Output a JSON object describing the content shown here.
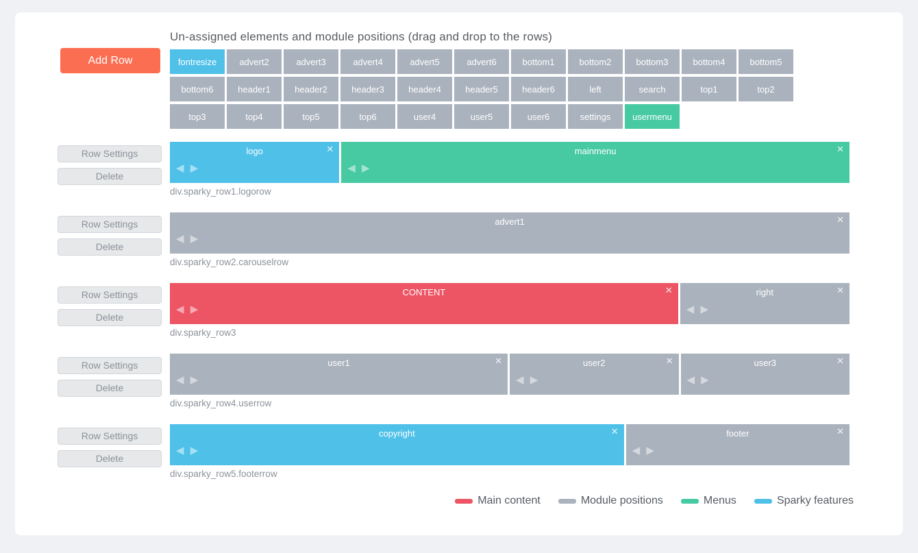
{
  "palette": {
    "content": "#ed5565",
    "module": "#aab2bd",
    "menu": "#47c9a2",
    "sparky": "#4fc1e9",
    "add_row": "#fb6e52",
    "page_bg": "#eff1f4",
    "card_bg": "#ffffff"
  },
  "header": {
    "title": "Un-assigned elements and module positions (drag and drop to the rows)"
  },
  "add_row_label": "Add Row",
  "row_controls": {
    "settings": "Row Settings",
    "delete": "Delete"
  },
  "icons": {
    "close": "✕",
    "arrow_left": "◀",
    "arrow_right": "▶"
  },
  "unassigned": [
    {
      "label": "fontresize",
      "type": "sparky"
    },
    {
      "label": "advert2",
      "type": "module"
    },
    {
      "label": "advert3",
      "type": "module"
    },
    {
      "label": "advert4",
      "type": "module"
    },
    {
      "label": "advert5",
      "type": "module"
    },
    {
      "label": "advert6",
      "type": "module"
    },
    {
      "label": "bottom1",
      "type": "module"
    },
    {
      "label": "bottom2",
      "type": "module"
    },
    {
      "label": "bottom3",
      "type": "module"
    },
    {
      "label": "bottom4",
      "type": "module"
    },
    {
      "label": "bottom5",
      "type": "module"
    },
    {
      "label": "bottom6",
      "type": "module"
    },
    {
      "label": "header1",
      "type": "module"
    },
    {
      "label": "header2",
      "type": "module"
    },
    {
      "label": "header3",
      "type": "module"
    },
    {
      "label": "header4",
      "type": "module"
    },
    {
      "label": "header5",
      "type": "module"
    },
    {
      "label": "header6",
      "type": "module"
    },
    {
      "label": "left",
      "type": "module"
    },
    {
      "label": "search",
      "type": "module"
    },
    {
      "label": "top1",
      "type": "module"
    },
    {
      "label": "top2",
      "type": "module"
    },
    {
      "label": "top3",
      "type": "module"
    },
    {
      "label": "top4",
      "type": "module"
    },
    {
      "label": "top5",
      "type": "module"
    },
    {
      "label": "top6",
      "type": "module"
    },
    {
      "label": "user4",
      "type": "module"
    },
    {
      "label": "user5",
      "type": "module"
    },
    {
      "label": "user6",
      "type": "module"
    },
    {
      "label": "settings",
      "type": "module"
    },
    {
      "label": "usermenu",
      "type": "menu"
    }
  ],
  "rows": [
    {
      "caption": "div.sparky_row1.logorow",
      "blocks": [
        {
          "label": "logo",
          "type": "sparky",
          "span": 25
        },
        {
          "label": "mainmenu",
          "type": "menu",
          "span": 75
        }
      ]
    },
    {
      "caption": "div.sparky_row2.carouselrow",
      "blocks": [
        {
          "label": "advert1",
          "type": "module",
          "span": 100
        }
      ]
    },
    {
      "caption": "div.sparky_row3",
      "blocks": [
        {
          "label": "CONTENT",
          "type": "content",
          "span": 75
        },
        {
          "label": "right",
          "type": "module",
          "span": 25
        }
      ]
    },
    {
      "caption": "div.sparky_row4.userrow",
      "blocks": [
        {
          "label": "user1",
          "type": "module",
          "span": 50
        },
        {
          "label": "user2",
          "type": "module",
          "span": 25
        },
        {
          "label": "user3",
          "type": "module",
          "span": 25
        }
      ]
    },
    {
      "caption": "div.sparky_row5.footerrow",
      "blocks": [
        {
          "label": "copyright",
          "type": "sparky",
          "span": 67
        },
        {
          "label": "footer",
          "type": "module",
          "span": 33
        }
      ]
    }
  ],
  "legend": [
    {
      "label": "Main content",
      "color": "#ed5565"
    },
    {
      "label": "Module positions",
      "color": "#aab2bd"
    },
    {
      "label": "Menus",
      "color": "#47c9a2"
    },
    {
      "label": "Sparky features",
      "color": "#4fc1e9"
    }
  ]
}
